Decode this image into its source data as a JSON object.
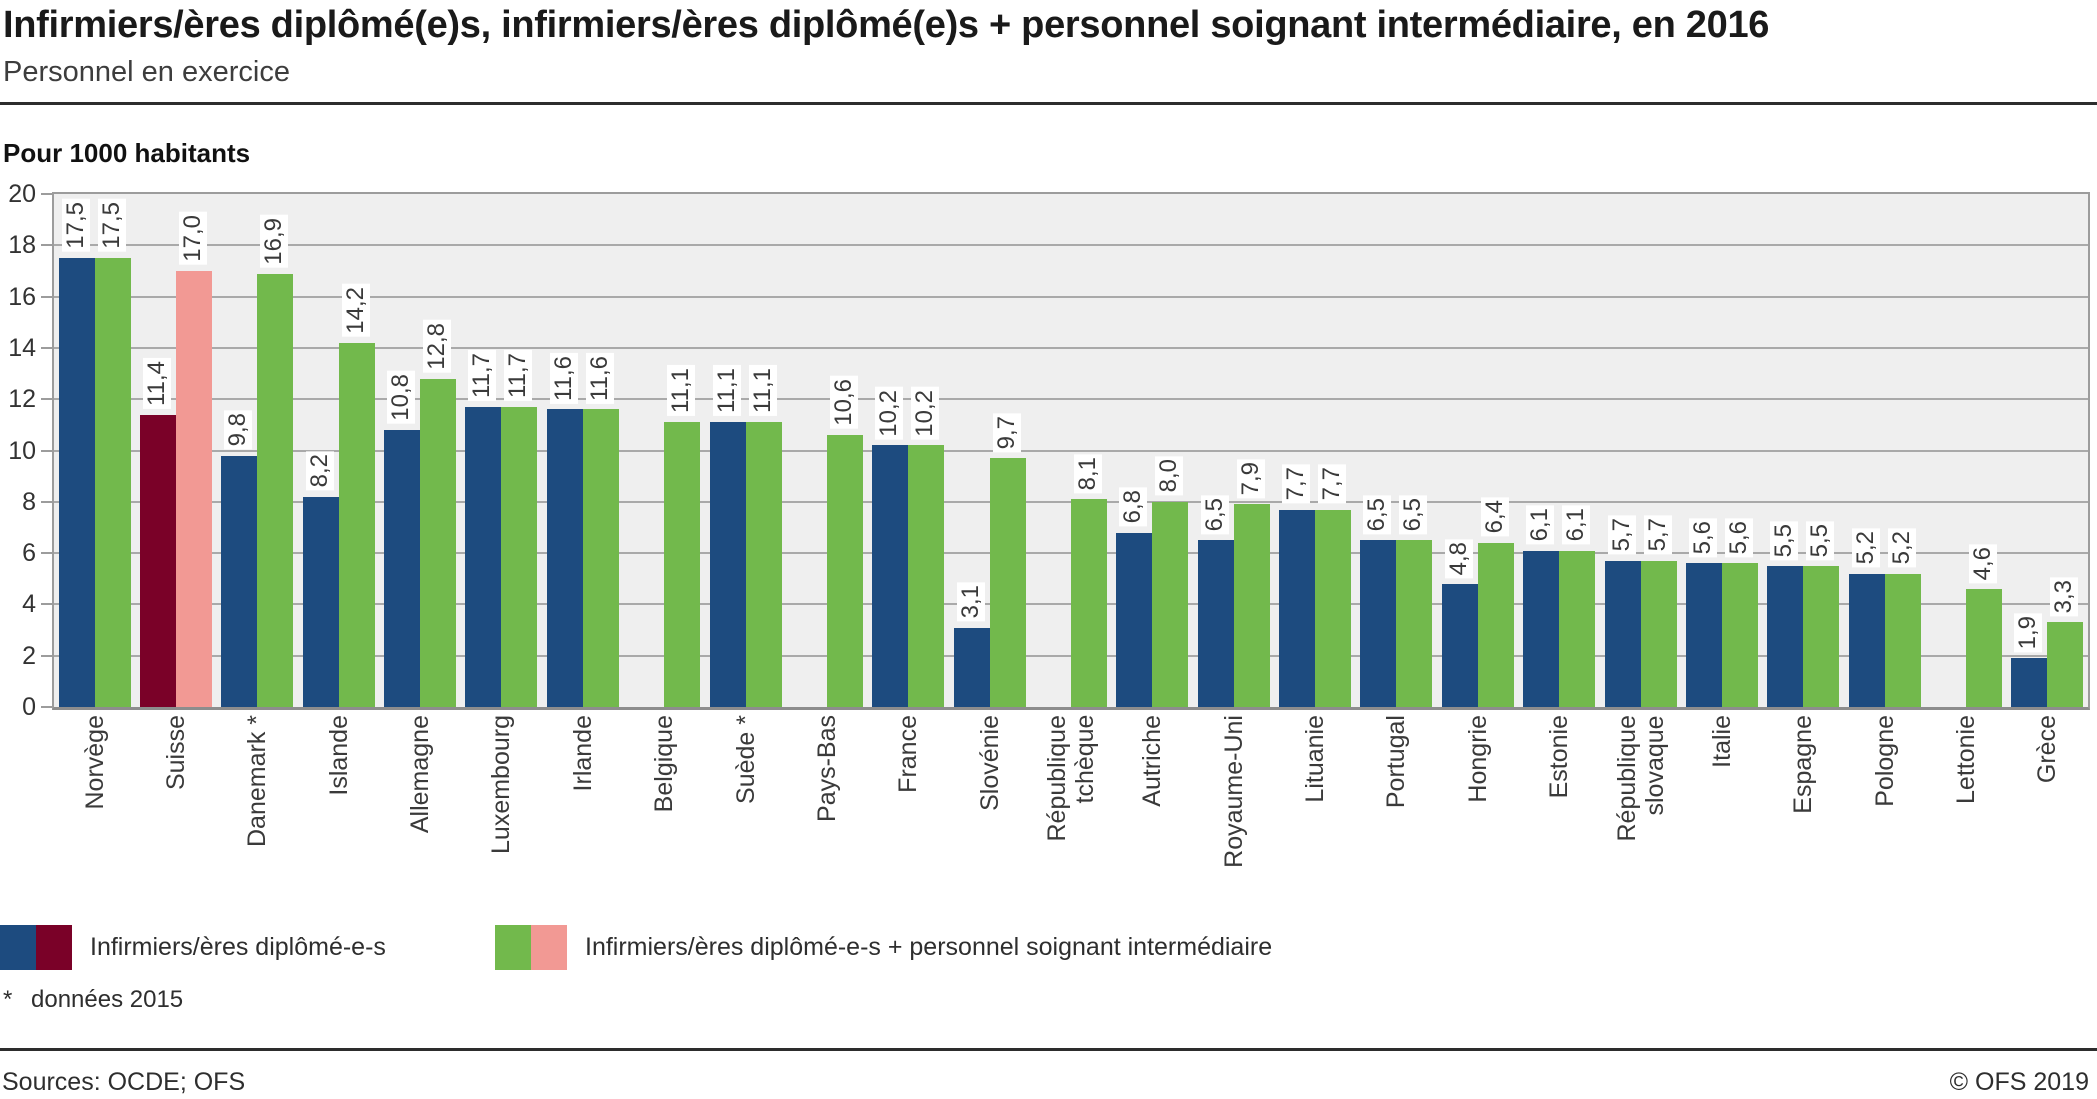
{
  "header": {
    "title": "Infirmiers/ères diplômé(e)s, infirmiers/ères diplômé(e)s + personnel soignant intermédiaire, en 2016",
    "subtitle": "Personnel en exercice"
  },
  "chart_data": {
    "type": "bar",
    "unit_label": "Pour 1000 habitants",
    "ylim": [
      0,
      20
    ],
    "yticks": [
      0,
      2,
      4,
      6,
      8,
      10,
      12,
      14,
      16,
      18,
      20
    ],
    "grid": true,
    "legend_position": "bottom",
    "decimal_separator": ",",
    "highlight_category": "Suisse",
    "categories": [
      "Norvège",
      "Suisse",
      "Danemark *",
      "Islande",
      "Allemagne",
      "Luxembourg",
      "Irlande",
      "Belgique",
      "Suède *",
      "Pays-Bas",
      "France",
      "Slovénie",
      "République\ntchèque",
      "Autriche",
      "Royaume-Uni",
      "Lituanie",
      "Portugal",
      "Hongrie",
      "Estonie",
      "République\nslovaque",
      "Italie",
      "Espagne",
      "Pologne",
      "Lettonie",
      "Grèce"
    ],
    "series": [
      {
        "name": "Infirmiers/ères diplômé-e-s",
        "color": "#1d4b7f",
        "highlight_color": "#7a0128",
        "values": [
          17.5,
          11.4,
          9.8,
          8.2,
          10.8,
          11.7,
          11.6,
          null,
          11.1,
          null,
          10.2,
          3.1,
          null,
          6.8,
          6.5,
          7.7,
          6.5,
          4.8,
          6.1,
          5.7,
          5.6,
          5.5,
          5.2,
          null,
          1.9
        ]
      },
      {
        "name": "Infirmiers/ères diplômé-e-s + personnel soignant intermédiaire",
        "color": "#72b94c",
        "highlight_color": "#f29994",
        "values": [
          17.5,
          17.0,
          16.9,
          14.2,
          12.8,
          11.7,
          11.6,
          11.1,
          11.1,
          10.6,
          10.2,
          9.7,
          8.1,
          8.0,
          7.9,
          7.7,
          6.5,
          6.4,
          6.1,
          5.7,
          5.6,
          5.5,
          5.2,
          4.6,
          3.3
        ]
      }
    ]
  },
  "legend": [
    {
      "label": "Infirmiers/ères diplômé-e-s",
      "colors": [
        "#1d4b7f",
        "#7a0128"
      ]
    },
    {
      "label": "Infirmiers/ères diplômé-e-s + personnel soignant intermédiaire",
      "colors": [
        "#72b94c",
        "#f29994"
      ]
    }
  ],
  "footnote": {
    "marker": "*",
    "text": "données 2015"
  },
  "footer": {
    "sources": "Sources: OCDE; OFS",
    "copyright": "© OFS 2019"
  }
}
